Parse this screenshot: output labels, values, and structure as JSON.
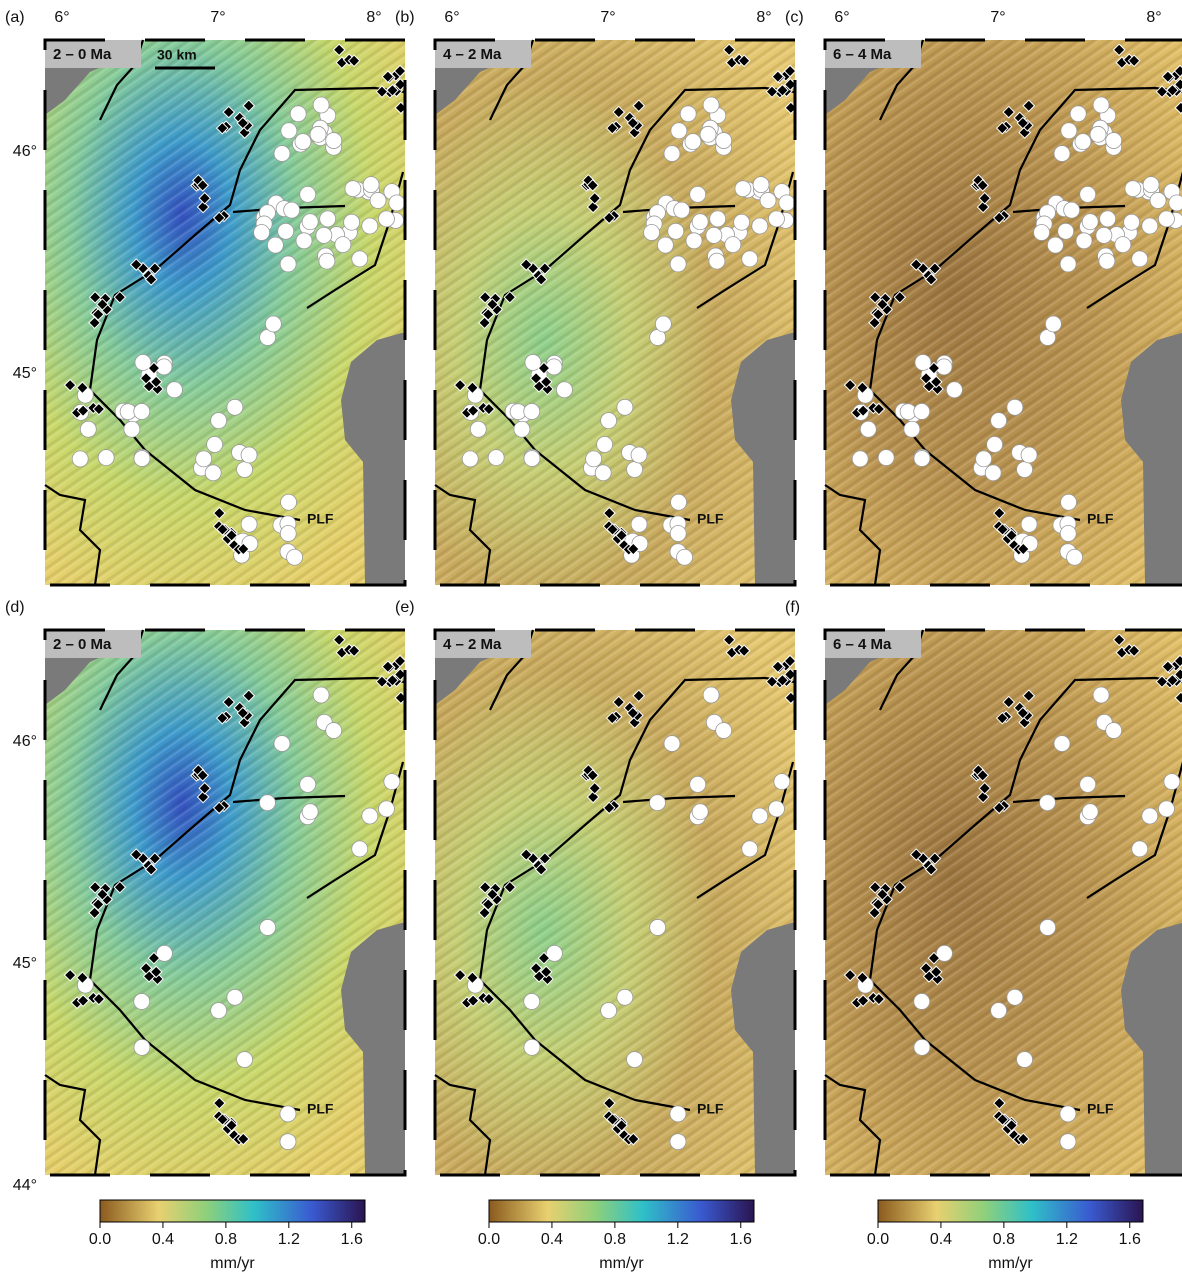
{
  "panels": [
    {
      "label": "(a)",
      "period": "2 – 0 Ma"
    },
    {
      "label": "(b)",
      "period": "4 – 2 Ma"
    },
    {
      "label": "(c)",
      "period": "6 – 4 Ma"
    },
    {
      "label": "(d)",
      "period": "2 – 0 Ma"
    },
    {
      "label": "(e)",
      "period": "4 – 2 Ma"
    },
    {
      "label": "(f)",
      "period": "6 – 4 Ma"
    }
  ],
  "lon_ticks": [
    "6°",
    "7°",
    "8°"
  ],
  "lat_ticks_top": [
    "46°",
    "45°"
  ],
  "lat_ticks_bottom": [
    "46°",
    "45°",
    "44°"
  ],
  "scale_bar": "30 km",
  "fault_label": "PLF",
  "colorbar": {
    "ticks": [
      "0.0",
      "0.4",
      "0.8",
      "1.2",
      "1.6"
    ],
    "unit": "mm/yr"
  }
}
